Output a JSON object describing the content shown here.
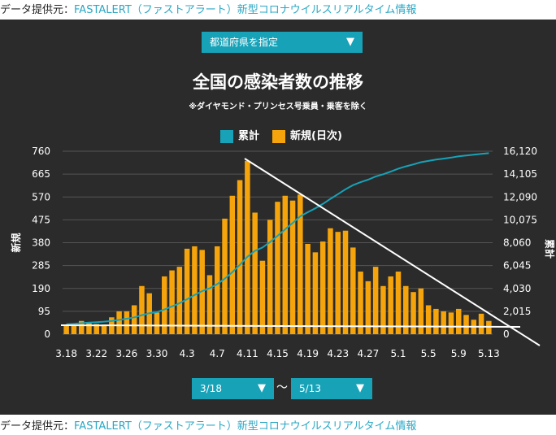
{
  "source": {
    "prefix": "データ提供元：",
    "link": "FASTALERT（ファストアラート）新型コロナウイルスリアルタイム情報"
  },
  "controls": {
    "prefecture_label": "都道府県を指定",
    "from_value": "3/18",
    "to_value": "5/13",
    "range_separator": "〜"
  },
  "colors": {
    "cumulative": "#17a2b8",
    "daily": "#f5a40c",
    "background": "#2b2b2b",
    "grid": "#555555",
    "text": "#ffffff"
  },
  "chart_data": {
    "type": "bar",
    "title": "全国の感染者数の推移",
    "subtitle": "※ダイヤモンド・プリンセス号乗員・乗客を除く",
    "legend": [
      {
        "name": "累計",
        "color": "#17a2b8"
      },
      {
        "name": "新規(日次)",
        "color": "#f5a40c"
      }
    ],
    "legend_position": "top-center",
    "ylabel_left": "新規",
    "ylabel_right": "累計",
    "y_left_ticks": [
      "760",
      "665",
      "570",
      "475",
      "380",
      "285",
      "190",
      "95",
      "0"
    ],
    "y_right_ticks": [
      "16,120",
      "14,105",
      "12,090",
      "10,075",
      "8,060",
      "6,045",
      "4,030",
      "2,015",
      "0"
    ],
    "ylim": [
      0,
      760
    ],
    "y2lim": [
      0,
      16120
    ],
    "grid": true,
    "x_tick_labels": [
      "3.18",
      "3.22",
      "3.26",
      "3.30",
      "4.3",
      "4.7",
      "4.11",
      "4.15",
      "4.19",
      "4.23",
      "4.27",
      "5.1",
      "5.5",
      "5.9",
      "5.13"
    ],
    "categories": [
      "3.18",
      "3.19",
      "3.20",
      "3.21",
      "3.22",
      "3.23",
      "3.24",
      "3.25",
      "3.26",
      "3.27",
      "3.28",
      "3.29",
      "3.30",
      "3.31",
      "4.1",
      "4.2",
      "4.3",
      "4.4",
      "4.5",
      "4.6",
      "4.7",
      "4.8",
      "4.9",
      "4.10",
      "4.11",
      "4.12",
      "4.13",
      "4.14",
      "4.15",
      "4.16",
      "4.17",
      "4.18",
      "4.19",
      "4.20",
      "4.21",
      "4.22",
      "4.23",
      "4.24",
      "4.25",
      "4.26",
      "4.27",
      "4.28",
      "4.29",
      "4.30",
      "5.1",
      "5.2",
      "5.3",
      "5.4",
      "5.5",
      "5.6",
      "5.7",
      "5.8",
      "5.9",
      "5.10",
      "5.11",
      "5.12",
      "5.13"
    ],
    "series": [
      {
        "name": "新規(日次)",
        "type": "bar",
        "values": [
          40,
          35,
          55,
          45,
          42,
          40,
          70,
          95,
          95,
          120,
          200,
          170,
          90,
          240,
          265,
          280,
          355,
          365,
          350,
          245,
          365,
          480,
          575,
          640,
          720,
          505,
          305,
          475,
          550,
          575,
          555,
          580,
          375,
          340,
          385,
          440,
          425,
          430,
          360,
          260,
          220,
          280,
          200,
          240,
          260,
          200,
          175,
          190,
          120,
          105,
          95,
          90,
          105,
          80,
          60,
          85,
          55
        ]
      },
      {
        "name": "累計",
        "type": "line",
        "values": [
          880,
          920,
          970,
          1020,
          1060,
          1100,
          1170,
          1260,
          1360,
          1480,
          1680,
          1850,
          1940,
          2180,
          2450,
          2730,
          3080,
          3450,
          3800,
          4050,
          4410,
          4890,
          5470,
          6110,
          6830,
          7340,
          7640,
          8120,
          8670,
          9240,
          9800,
          10380,
          10750,
          11090,
          11480,
          11920,
          12340,
          12770,
          13130,
          13390,
          13610,
          13890,
          14090,
          14330,
          14590,
          14790,
          14960,
          15150,
          15270,
          15380,
          15470,
          15560,
          15670,
          15750,
          15810,
          15890,
          15950
        ]
      }
    ]
  }
}
